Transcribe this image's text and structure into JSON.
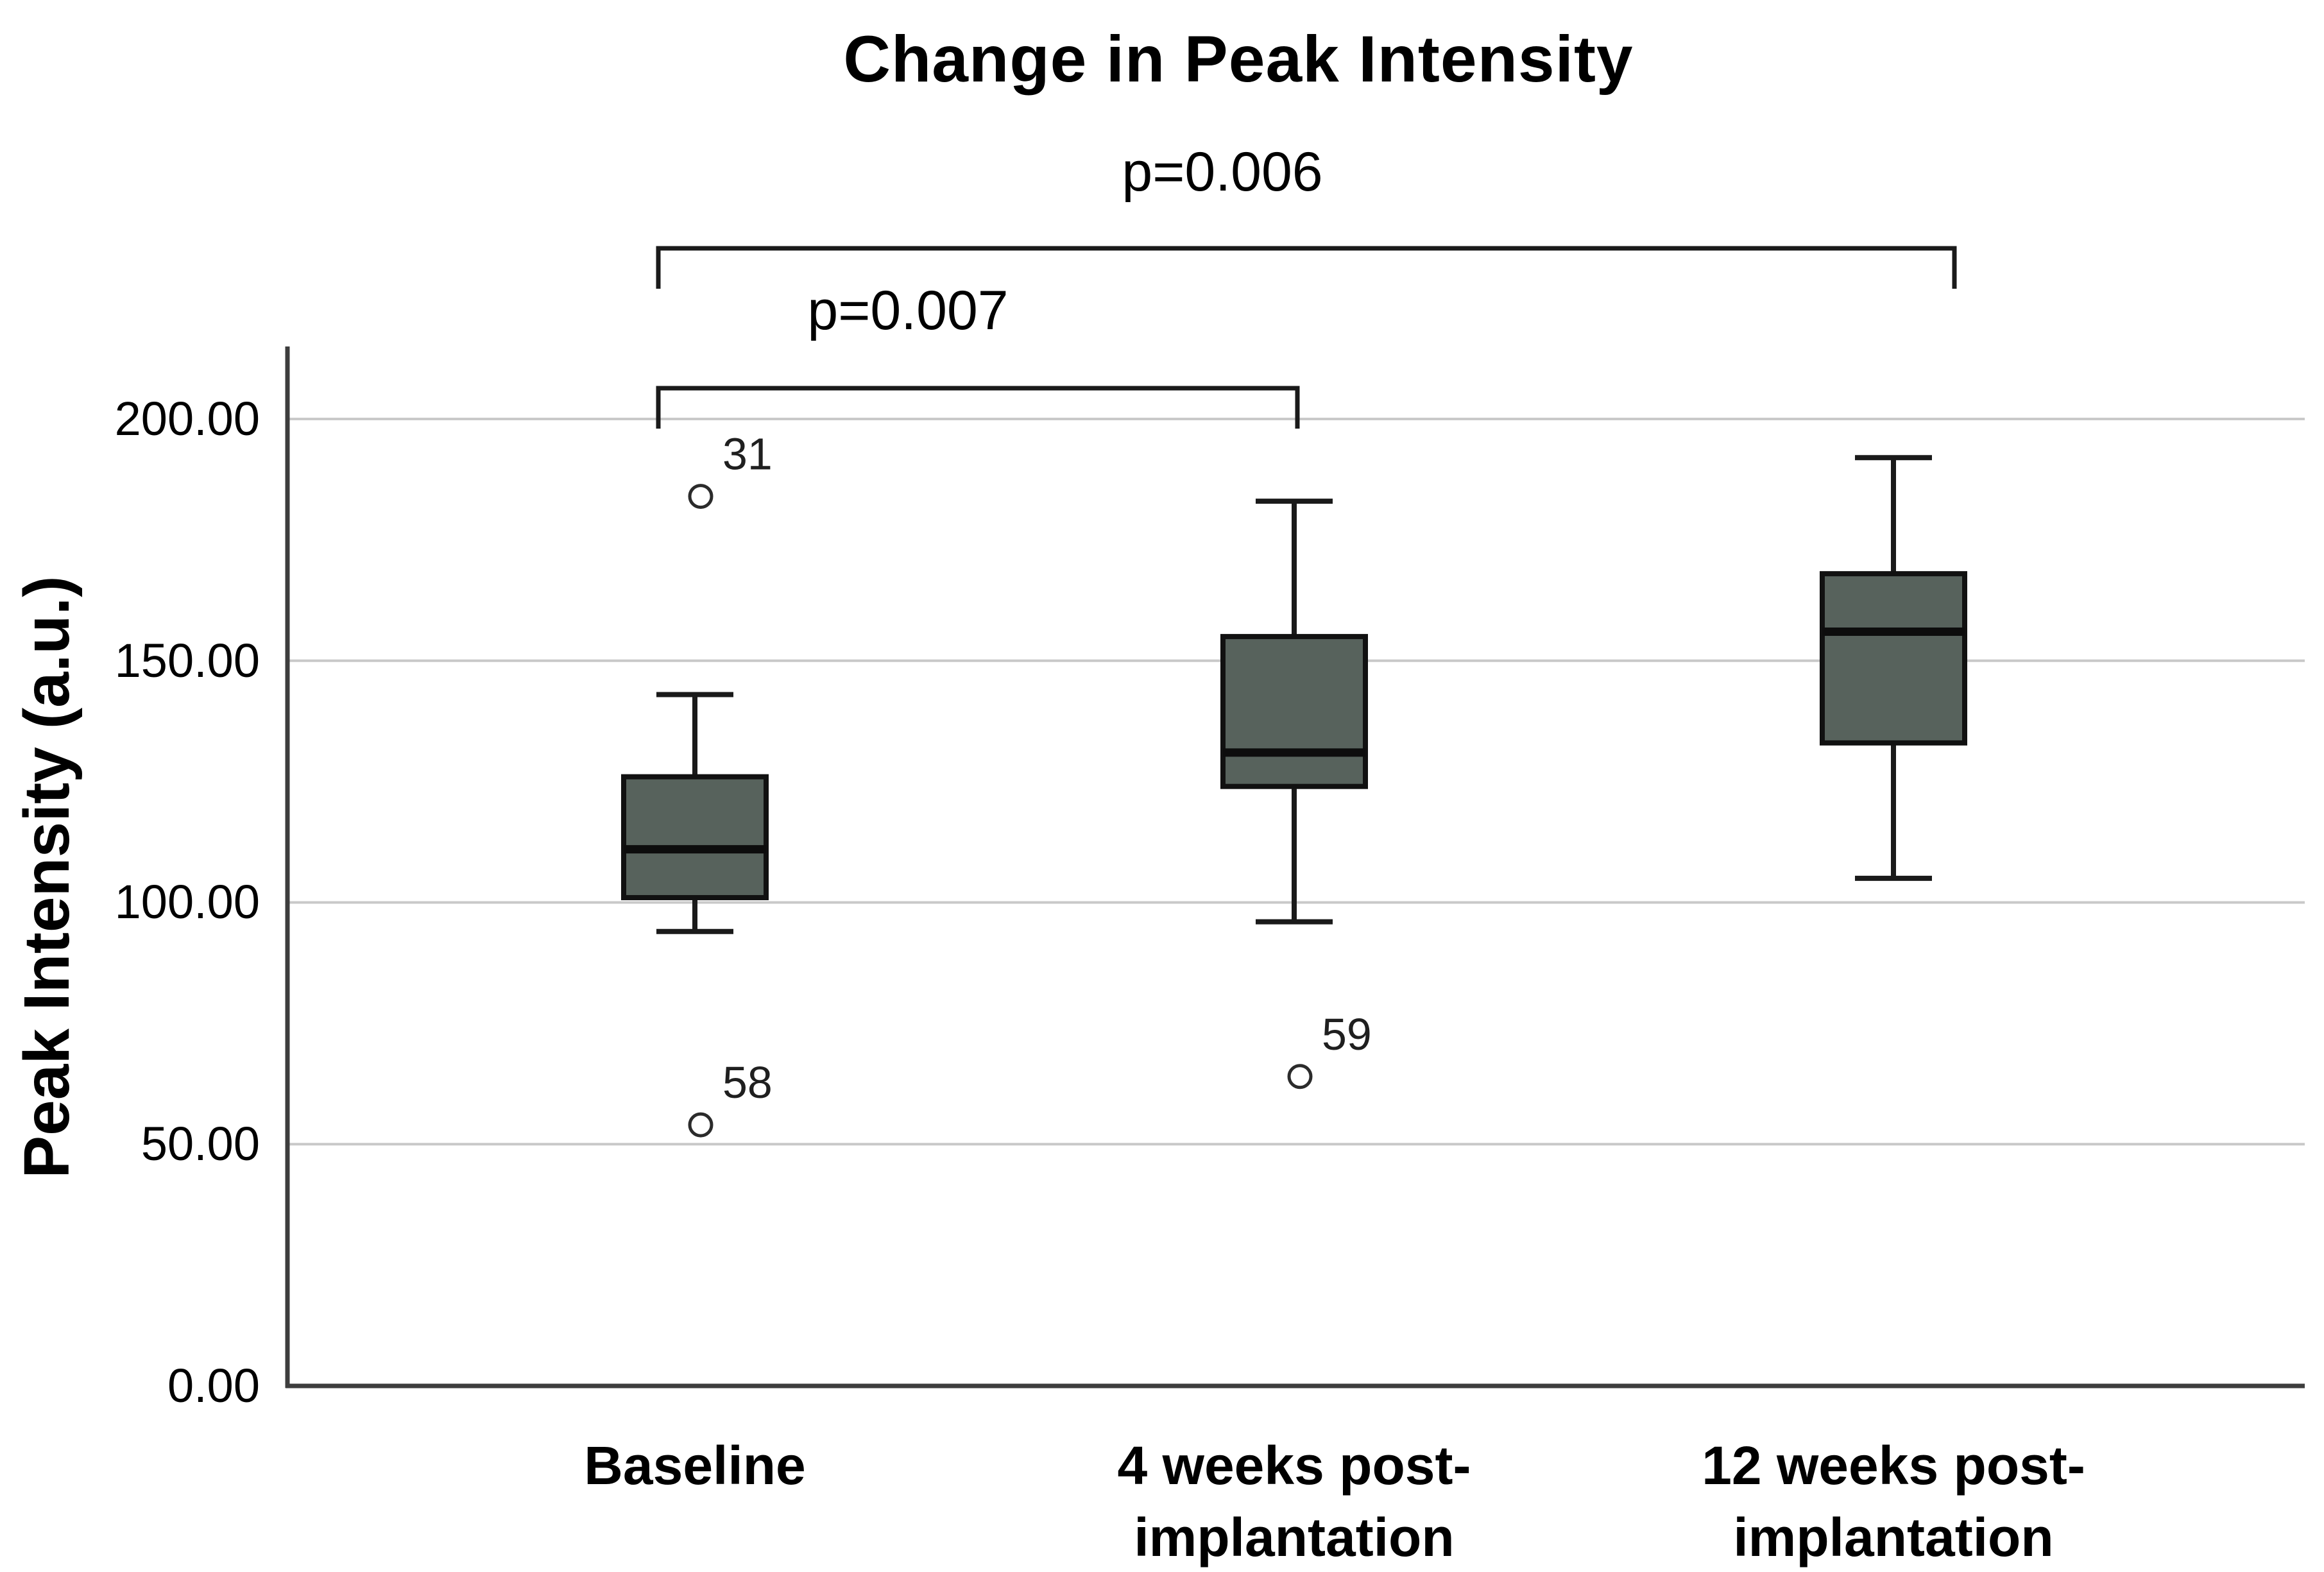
{
  "figure": {
    "title": "Change in Peak Intensity"
  },
  "chart_data": {
    "type": "boxplot",
    "title": "Change in Peak Intensity",
    "xlabel": "",
    "ylabel": "Peak Intensity (a.u.)",
    "ylim": [
      0,
      215
    ],
    "grid": "horizontal-gridlines",
    "legend": "none",
    "yticks": [
      "0.00",
      "50.00",
      "100.00",
      "150.00",
      "200.00"
    ],
    "ytick_values": [
      0,
      50,
      100,
      150,
      200
    ],
    "categories": [
      "Baseline",
      "4 weeks post-implantation",
      "12 weeks post-implantation"
    ],
    "category_lines": [
      [
        "Baseline"
      ],
      [
        "4 weeks post-",
        "implantation"
      ],
      [
        "12 weeks post-",
        "implantation"
      ]
    ],
    "series": [
      {
        "category": "Baseline",
        "whisker_low": 94,
        "q1": 101,
        "median": 111,
        "q3": 126,
        "whisker_high": 143,
        "outliers": [
          {
            "id": "31",
            "value": 184
          },
          {
            "id": "58",
            "value": 54
          }
        ]
      },
      {
        "category": "4 weeks post-implantation",
        "whisker_low": 96,
        "q1": 124,
        "median": 131,
        "q3": 155,
        "whisker_high": 183,
        "outliers": [
          {
            "id": "59",
            "value": 64
          }
        ]
      },
      {
        "category": "12 weeks post-implantation",
        "whisker_low": 105,
        "q1": 133,
        "median": 156,
        "q3": 168,
        "whisker_high": 192,
        "outliers": []
      }
    ],
    "annotations": [
      {
        "text": "p=0.006",
        "pair": [
          0,
          2
        ]
      },
      {
        "text": "p=0.007",
        "pair": [
          0,
          1
        ]
      }
    ],
    "colors": {
      "box_fill": "#57625c",
      "box_border": "#111111",
      "median": "#0d0d0d",
      "whisker": "#1a1a1a",
      "outlier_stroke": "#2b2b2b",
      "gridline": "#c9c9c9",
      "axis": "#3d3d3d",
      "bracket": "#1a1a1a",
      "outlier_label": "#1f1f1f"
    }
  }
}
